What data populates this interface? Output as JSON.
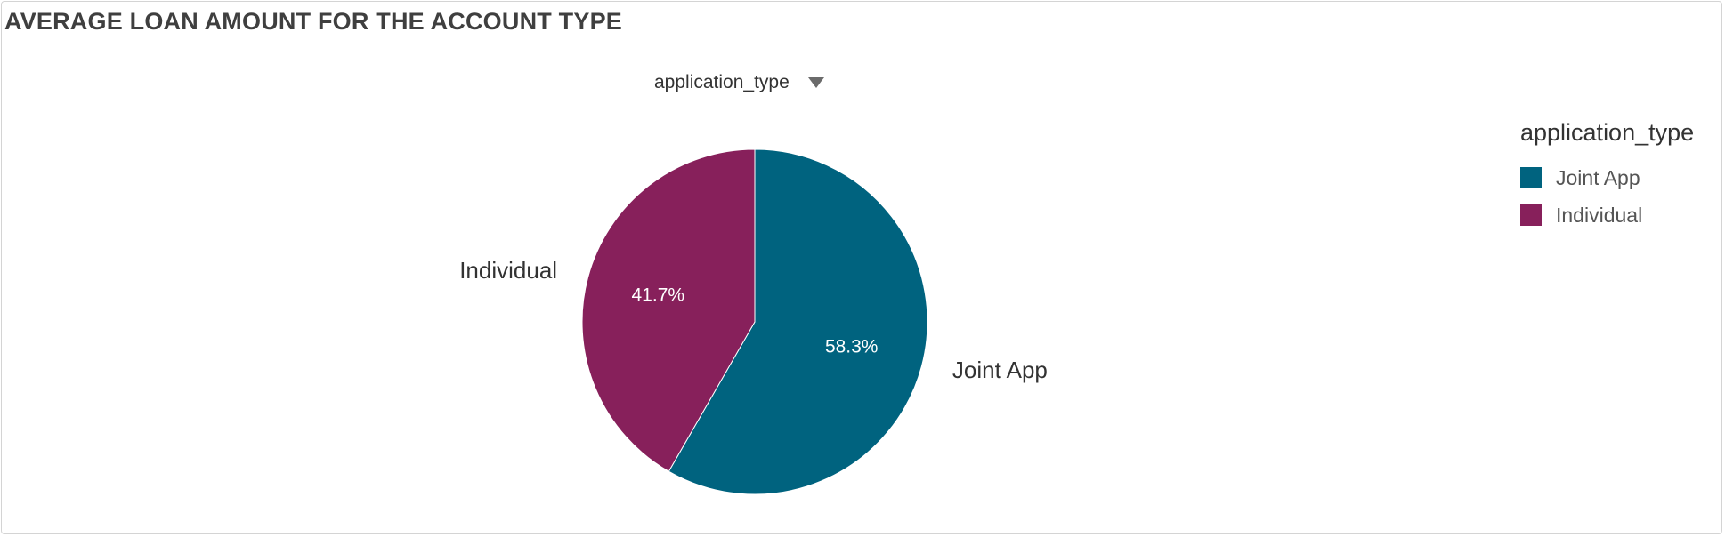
{
  "panel": {
    "title": "AVERAGE LOAN AMOUNT FOR THE ACCOUNT TYPE"
  },
  "field_selector": {
    "label": "application_type",
    "icon": "chevron-down-icon"
  },
  "legend": {
    "title": "application_type",
    "placement": "right",
    "items": [
      {
        "label": "Joint App",
        "color": "#00637f"
      },
      {
        "label": "Individual",
        "color": "#87205b"
      }
    ]
  },
  "chart_data": {
    "type": "pie",
    "title": "AVERAGE LOAN AMOUNT FOR THE ACCOUNT TYPE",
    "legend_title": "application_type",
    "legend_placement": "right",
    "start_angle_deg": 0,
    "direction": "clockwise",
    "slices": [
      {
        "label": "Joint App",
        "percent_label": "58.3%",
        "value": 58.3,
        "color": "#00637f"
      },
      {
        "label": "Individual",
        "percent_label": "41.7%",
        "value": 41.7,
        "color": "#87205b"
      }
    ]
  }
}
